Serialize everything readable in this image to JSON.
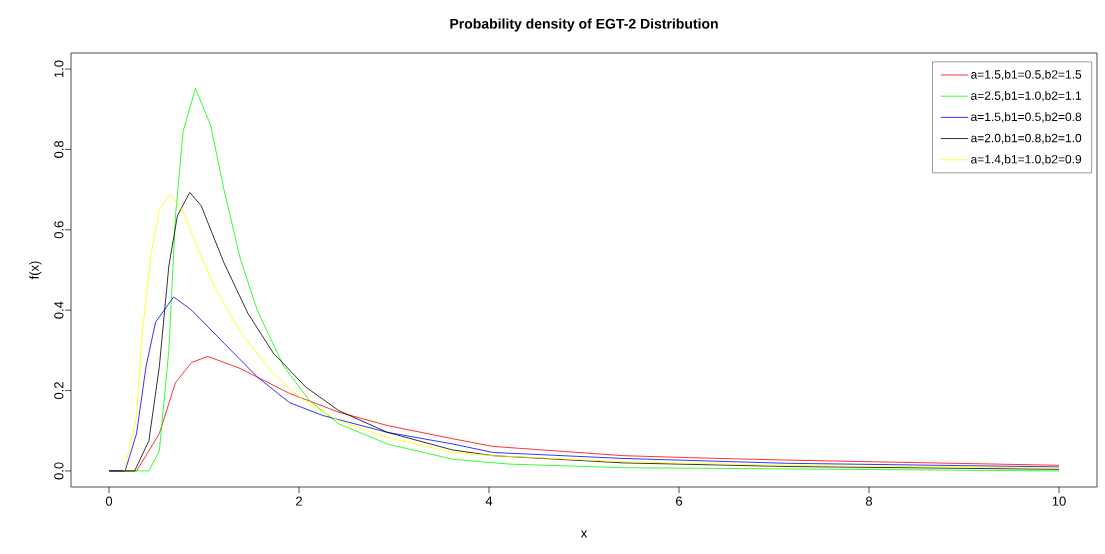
{
  "chart_data": {
    "type": "line",
    "title": "Probability density of EGT-2 Distribution",
    "xlabel": "x",
    "ylabel": "f(x)",
    "xlim": [
      -0.4,
      10.4
    ],
    "ylim": [
      -0.04,
      1.04
    ],
    "xticks": [
      0,
      2,
      4,
      6,
      8,
      10
    ],
    "yticks": [
      {
        "value": 0,
        "label": "0.0"
      },
      0.2,
      0.4,
      0.6,
      0.8,
      {
        "value": 1,
        "label": "1.0"
      }
    ],
    "legend": "top right",
    "grid": false,
    "marker": "none",
    "line_style": "solid",
    "series": [
      {
        "name": "a=1.5,b1=0.5,b2=1.5",
        "color": "#ff0000",
        "x": [
          0.0,
          0.29,
          0.53,
          0.7,
          0.87,
          1.04,
          1.38,
          1.9,
          2.42,
          2.93,
          3.62,
          4.04,
          5.41,
          6.1,
          7.13,
          7.99,
          10.0
        ],
        "values": [
          0.0,
          0.0,
          0.093,
          0.22,
          0.27,
          0.285,
          0.255,
          0.193,
          0.146,
          0.113,
          0.08,
          0.061,
          0.038,
          0.033,
          0.027,
          0.023,
          0.014
        ]
      },
      {
        "name": "a=2.5,b1=1.0,b2=1.1",
        "color": "#00ff00",
        "x": [
          0.0,
          0.42,
          0.53,
          0.63,
          0.7,
          0.78,
          0.91,
          1.07,
          1.21,
          1.38,
          1.56,
          1.84,
          2.11,
          2.42,
          2.93,
          3.62,
          4.21,
          5.41,
          10.0
        ],
        "values": [
          0.0,
          0.0,
          0.05,
          0.3,
          0.635,
          0.845,
          0.952,
          0.86,
          0.7,
          0.53,
          0.4,
          0.26,
          0.175,
          0.117,
          0.067,
          0.029,
          0.017,
          0.008,
          0.0
        ]
      },
      {
        "name": "a=1.5,b1=0.5,b2=0.8",
        "color": "#0000ff",
        "x": [
          0.0,
          0.17,
          0.29,
          0.39,
          0.49,
          0.68,
          0.87,
          1.21,
          1.56,
          1.9,
          2.25,
          2.93,
          3.62,
          4.04,
          5.41,
          7.13,
          10.0
        ],
        "values": [
          0.0,
          0.0,
          0.093,
          0.26,
          0.37,
          0.433,
          0.4,
          0.318,
          0.234,
          0.17,
          0.138,
          0.096,
          0.067,
          0.046,
          0.031,
          0.019,
          0.01
        ]
      },
      {
        "name": "a=2.0,b1=0.8,b2=1.0",
        "color": "#000000",
        "x": [
          0.0,
          0.27,
          0.42,
          0.53,
          0.63,
          0.72,
          0.85,
          0.97,
          1.21,
          1.46,
          1.73,
          2.07,
          2.42,
          2.93,
          3.62,
          4.04,
          5.41,
          7.13,
          10.0
        ],
        "values": [
          0.0,
          0.0,
          0.075,
          0.26,
          0.51,
          0.635,
          0.693,
          0.66,
          0.518,
          0.393,
          0.293,
          0.209,
          0.15,
          0.096,
          0.052,
          0.038,
          0.02,
          0.011,
          0.004
        ]
      },
      {
        "name": "a=1.4,b1=1.0,b2=0.9",
        "color": "#ffff00",
        "x": [
          0.16,
          0.29,
          0.35,
          0.44,
          0.53,
          0.64,
          0.77,
          0.94,
          1.11,
          1.39,
          1.73,
          2.07,
          2.42,
          2.93,
          3.62,
          4.04,
          5.41,
          7.13,
          10.0
        ],
        "values": [
          0.0,
          0.134,
          0.343,
          0.535,
          0.65,
          0.687,
          0.65,
          0.551,
          0.459,
          0.343,
          0.242,
          0.171,
          0.125,
          0.083,
          0.046,
          0.038,
          0.023,
          0.014,
          0.007
        ]
      }
    ]
  }
}
